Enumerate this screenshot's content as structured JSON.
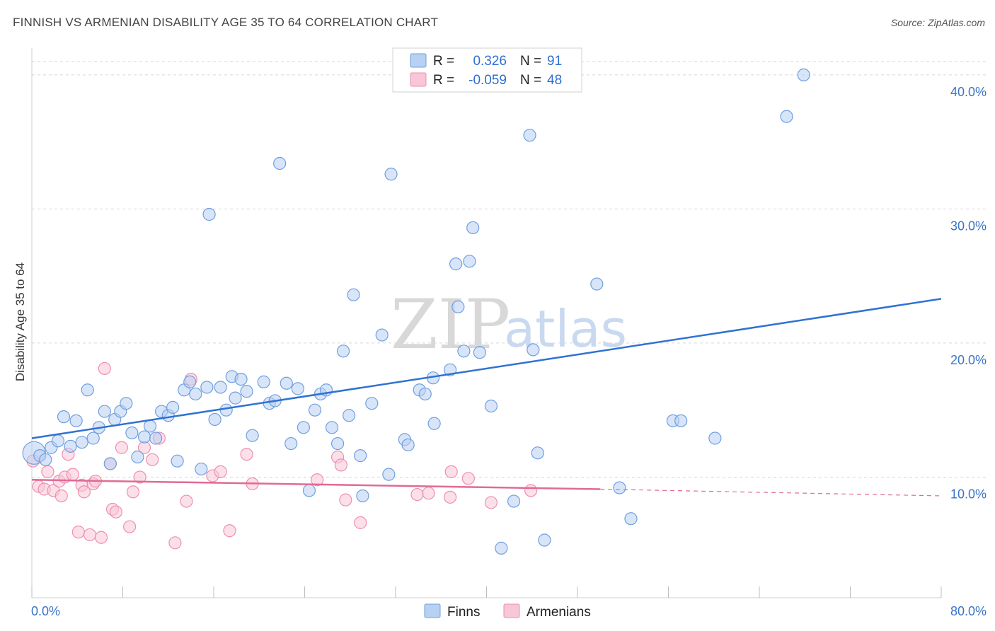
{
  "title": "FINNISH VS ARMENIAN DISABILITY AGE 35 TO 64 CORRELATION CHART",
  "source": "Source: ZipAtlas.com",
  "colors": {
    "finns": "#6f9fe0",
    "finns_fill": "#b8d0f2",
    "finns_line": "#2f72d3",
    "armenians": "#ee8fb0",
    "armenians_fill": "#f7c6d7",
    "armenians_line": "#e06a97",
    "grid": "#d6d6d6",
    "axis_text": "#3a74c8"
  },
  "watermark": {
    "zip": "ZIP",
    "atlas": "atlas"
  },
  "legend": {
    "rows": [
      {
        "r_label": "R =",
        "r_value": "0.326",
        "n_label": "N =",
        "n_value": "91"
      },
      {
        "r_label": "R =",
        "r_value": "-0.059",
        "n_label": "N =",
        "n_value": "48"
      }
    ]
  },
  "bottom_legend": [
    "Finns",
    "Armenians"
  ],
  "chart_data": {
    "type": "scatter",
    "xlabel": "",
    "ylabel": "Disability Age 35 to 64",
    "xlim": [
      0,
      80
    ],
    "ylim": [
      1,
      42
    ],
    "x_tick_labels": [
      "0.0%",
      "80.0%"
    ],
    "y_ticks": [
      10,
      20,
      30,
      40
    ],
    "y_tick_labels": [
      "10.0%",
      "20.0%",
      "30.0%",
      "40.0%"
    ],
    "series": [
      {
        "name": "Finns",
        "trend": {
          "x": [
            0,
            80
          ],
          "y": [
            12.9,
            23.3
          ]
        },
        "points": [
          [
            0.2,
            11.8
          ],
          [
            0.7,
            11.6
          ],
          [
            1.2,
            11.3
          ],
          [
            1.7,
            12.2
          ],
          [
            2.3,
            12.7
          ],
          [
            2.8,
            14.5
          ],
          [
            3.4,
            12.3
          ],
          [
            3.9,
            14.2
          ],
          [
            4.4,
            12.6
          ],
          [
            4.9,
            16.5
          ],
          [
            5.4,
            12.9
          ],
          [
            5.9,
            13.7
          ],
          [
            6.4,
            14.9
          ],
          [
            6.9,
            11.0
          ],
          [
            7.3,
            14.3
          ],
          [
            7.8,
            14.9
          ],
          [
            8.3,
            15.5
          ],
          [
            8.8,
            13.3
          ],
          [
            9.3,
            11.5
          ],
          [
            9.9,
            13.0
          ],
          [
            10.4,
            13.8
          ],
          [
            10.9,
            12.9
          ],
          [
            11.4,
            14.9
          ],
          [
            12.0,
            14.6
          ],
          [
            12.4,
            15.2
          ],
          [
            12.8,
            11.2
          ],
          [
            13.4,
            16.5
          ],
          [
            13.9,
            17.1
          ],
          [
            14.4,
            16.2
          ],
          [
            14.9,
            10.6
          ],
          [
            15.4,
            16.7
          ],
          [
            15.6,
            29.6
          ],
          [
            16.1,
            14.3
          ],
          [
            16.6,
            16.7
          ],
          [
            17.1,
            15.0
          ],
          [
            17.6,
            17.5
          ],
          [
            17.9,
            15.9
          ],
          [
            18.4,
            17.3
          ],
          [
            18.9,
            16.4
          ],
          [
            19.4,
            13.1
          ],
          [
            20.4,
            17.1
          ],
          [
            20.9,
            15.5
          ],
          [
            21.4,
            15.7
          ],
          [
            21.8,
            33.4
          ],
          [
            22.4,
            17.0
          ],
          [
            22.8,
            12.5
          ],
          [
            23.4,
            16.6
          ],
          [
            23.9,
            13.7
          ],
          [
            24.4,
            9.0
          ],
          [
            24.9,
            15.0
          ],
          [
            25.4,
            16.2
          ],
          [
            25.9,
            16.5
          ],
          [
            26.4,
            13.7
          ],
          [
            26.9,
            12.5
          ],
          [
            27.4,
            19.4
          ],
          [
            27.9,
            14.6
          ],
          [
            28.3,
            23.6
          ],
          [
            28.9,
            11.6
          ],
          [
            29.1,
            8.6
          ],
          [
            29.9,
            15.5
          ],
          [
            30.8,
            20.6
          ],
          [
            31.4,
            10.2
          ],
          [
            31.6,
            32.6
          ],
          [
            32.8,
            12.8
          ],
          [
            33.1,
            12.4
          ],
          [
            34.1,
            16.5
          ],
          [
            34.6,
            16.2
          ],
          [
            35.3,
            17.4
          ],
          [
            35.4,
            14.0
          ],
          [
            36.8,
            18.0
          ],
          [
            37.3,
            25.9
          ],
          [
            37.5,
            22.7
          ],
          [
            38.0,
            19.4
          ],
          [
            38.5,
            26.1
          ],
          [
            38.8,
            28.6
          ],
          [
            39.4,
            19.3
          ],
          [
            40.4,
            15.3
          ],
          [
            42.4,
            8.2
          ],
          [
            43.8,
            35.5
          ],
          [
            44.1,
            19.5
          ],
          [
            44.5,
            11.8
          ],
          [
            45.1,
            5.3
          ],
          [
            41.3,
            4.7
          ],
          [
            49.7,
            24.4
          ],
          [
            51.7,
            9.2
          ],
          [
            52.7,
            6.9
          ],
          [
            56.4,
            14.2
          ],
          [
            57.1,
            14.2
          ],
          [
            60.1,
            12.9
          ],
          [
            66.4,
            36.9
          ],
          [
            67.9,
            40.0
          ]
        ]
      },
      {
        "name": "Armenians",
        "trend": {
          "x": [
            0,
            50
          ],
          "y": [
            9.8,
            9.1
          ]
        },
        "trend_dashed": {
          "x": [
            50,
            80
          ],
          "y": [
            9.1,
            8.6
          ]
        },
        "points": [
          [
            0.1,
            11.2
          ],
          [
            0.6,
            9.3
          ],
          [
            1.1,
            9.1
          ],
          [
            1.4,
            10.4
          ],
          [
            1.9,
            9.0
          ],
          [
            2.4,
            9.7
          ],
          [
            2.6,
            8.6
          ],
          [
            2.9,
            10.0
          ],
          [
            3.2,
            11.7
          ],
          [
            3.6,
            10.2
          ],
          [
            4.1,
            5.9
          ],
          [
            4.4,
            9.4
          ],
          [
            4.6,
            8.9
          ],
          [
            5.1,
            5.7
          ],
          [
            5.4,
            9.5
          ],
          [
            5.6,
            9.7
          ],
          [
            6.1,
            5.5
          ],
          [
            6.4,
            18.1
          ],
          [
            6.9,
            11.0
          ],
          [
            7.1,
            7.6
          ],
          [
            7.4,
            7.4
          ],
          [
            7.9,
            12.2
          ],
          [
            8.6,
            6.3
          ],
          [
            8.9,
            8.9
          ],
          [
            9.5,
            10.0
          ],
          [
            9.9,
            12.2
          ],
          [
            10.6,
            11.3
          ],
          [
            11.2,
            12.9
          ],
          [
            12.6,
            5.1
          ],
          [
            13.6,
            8.2
          ],
          [
            14.0,
            17.3
          ],
          [
            15.9,
            10.1
          ],
          [
            16.6,
            10.4
          ],
          [
            17.4,
            6.0
          ],
          [
            19.4,
            9.5
          ],
          [
            18.9,
            11.7
          ],
          [
            25.1,
            9.8
          ],
          [
            26.9,
            11.5
          ],
          [
            27.2,
            10.9
          ],
          [
            27.6,
            8.3
          ],
          [
            28.9,
            6.6
          ],
          [
            33.9,
            8.7
          ],
          [
            34.9,
            8.8
          ],
          [
            36.9,
            10.4
          ],
          [
            36.8,
            8.5
          ],
          [
            38.4,
            9.9
          ],
          [
            40.4,
            8.1
          ],
          [
            43.9,
            9.0
          ]
        ]
      }
    ]
  }
}
